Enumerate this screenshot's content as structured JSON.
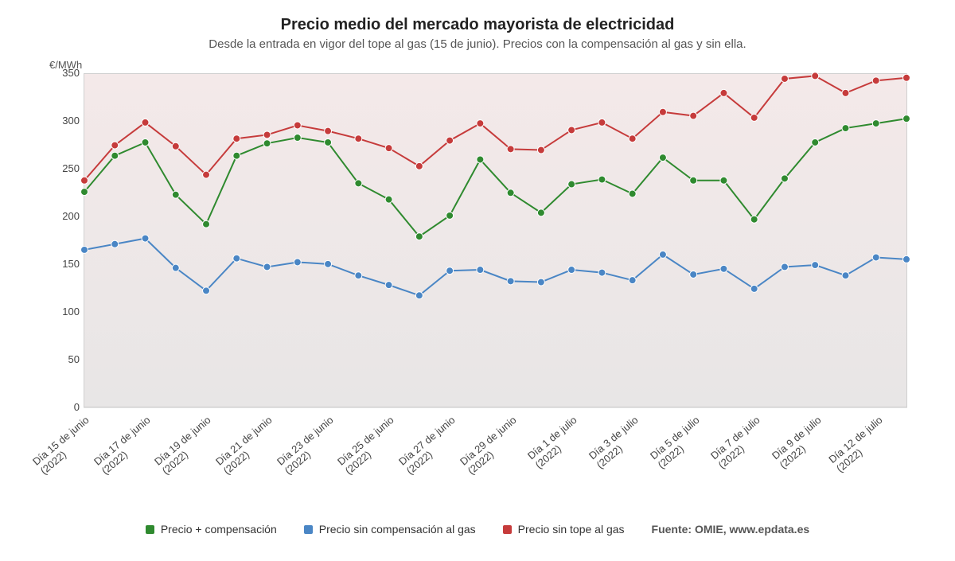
{
  "title": "Precio medio del mercado mayorista de electricidad",
  "subtitle": "Desde la entrada en vigor del tope al gas (15 de junio). Precios con la compensación al gas y sin ella.",
  "yaxis_label": "€/MWh",
  "source_label": "Fuente: OMIE, www.epdata.es",
  "chart": {
    "type": "line",
    "title_fontsize": 20,
    "subtitle_fontsize": 15,
    "label_fontsize": 13,
    "background_gradient_top": "#f4e9e9",
    "background_gradient_bottom": "#e8e6e6",
    "border_color": "#d0d0d0",
    "grid_color": "#e5e5e5",
    "ylim": [
      0,
      350
    ],
    "ytick_step": 50,
    "yticks": [
      0,
      50,
      100,
      150,
      200,
      250,
      300,
      350
    ],
    "marker_radius": 4.5,
    "line_width": 2,
    "marker_stroke": "#ffffff",
    "marker_stroke_width": 1,
    "xlabels_visible": [
      "Día 15 de junio (2022)",
      "Día 17 de junio (2022)",
      "Día 19 de junio (2022)",
      "Día 21 de junio (2022)",
      "Día 23 de junio (2022)",
      "Día 25 de junio (2022)",
      "Día 27 de junio (2022)",
      "Día 29 de junio (2022)",
      "Día 1 de julio (2022)",
      "Día 3 de julio (2022)",
      "Día 5 de julio (2022)",
      "Día 7 de julio (2022)",
      "Día 9 de julio (2022)",
      "Día 12 de julio (2022)"
    ],
    "xlabel_line2": {
      "Día 15 de junio (2022)": [
        "Día 15 de junio",
        "(2022)"
      ],
      "Día 17 de junio (2022)": [
        "Día 17 de junio",
        "(2022)"
      ],
      "Día 19 de junio (2022)": [
        "Día 19 de junio",
        "(2022)"
      ],
      "Día 21 de junio (2022)": [
        "Día 21 de junio",
        "(2022)"
      ],
      "Día 23 de junio (2022)": [
        "Día 23 de junio",
        "(2022)"
      ],
      "Día 25 de junio (2022)": [
        "Día 25 de junio",
        "(2022)"
      ],
      "Día 27 de junio (2022)": [
        "Día 27 de junio",
        "(2022)"
      ],
      "Día 29 de junio (2022)": [
        "Día 29 de junio",
        "(2022)"
      ],
      "Día 1 de julio (2022)": [
        "Día 1 de julio",
        "(2022)"
      ],
      "Día 3 de julio (2022)": [
        "Día 3 de julio",
        "(2022)"
      ],
      "Día 5 de julio (2022)": [
        "Día 5 de julio",
        "(2022)"
      ],
      "Día 7 de julio (2022)": [
        "Día 7 de julio",
        "(2022)"
      ],
      "Día 9 de julio (2022)": [
        "Día 9 de julio",
        "(2022)"
      ],
      "Día 12 de julio (2022)": [
        "Día 12 de julio",
        "(2022)"
      ]
    },
    "xlabel_every": 2,
    "xlabel_last_always": true,
    "n_points": 28,
    "series": [
      {
        "name": "Precio sin tope al gas",
        "color": "#c63b3b",
        "values": [
          238,
          275,
          299,
          274,
          244,
          282,
          286,
          296,
          290,
          282,
          272,
          253,
          280,
          298,
          271,
          270,
          291,
          299,
          282,
          310,
          306,
          330,
          304,
          345,
          348,
          330,
          343,
          346
        ]
      },
      {
        "name": "Precio + compensación",
        "color": "#2f8a2f",
        "values": [
          226,
          264,
          278,
          223,
          192,
          264,
          277,
          283,
          278,
          235,
          218,
          179,
          201,
          260,
          225,
          204,
          234,
          239,
          224,
          262,
          238,
          238,
          197,
          240,
          278,
          293,
          298,
          303
        ]
      },
      {
        "name": "Precio sin compensación al gas",
        "color": "#4a86c5",
        "values": [
          165,
          171,
          177,
          146,
          122,
          156,
          147,
          152,
          150,
          138,
          128,
          117,
          143,
          144,
          132,
          131,
          144,
          141,
          133,
          160,
          139,
          145,
          124,
          147,
          149,
          138,
          157,
          155
        ]
      }
    ],
    "legend_order": [
      1,
      2,
      0
    ]
  }
}
